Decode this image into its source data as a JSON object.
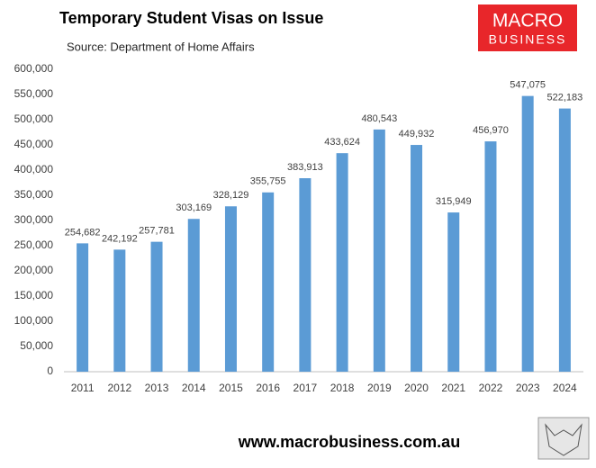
{
  "chart_data": {
    "type": "bar",
    "title": "Temporary Student Visas on Issue",
    "subtitle": "Source: Department of Home Affairs",
    "logo": [
      "MACRO",
      "BUSINESS"
    ],
    "footer": "www.macrobusiness.com.au",
    "categories": [
      "2011",
      "2012",
      "2013",
      "2014",
      "2015",
      "2016",
      "2017",
      "2018",
      "2019",
      "2020",
      "2021",
      "2022",
      "2023",
      "2024"
    ],
    "values": [
      254682,
      242192,
      257781,
      303169,
      328129,
      355755,
      383913,
      433624,
      480543,
      449932,
      315949,
      456970,
      547075,
      522183
    ],
    "value_labels": [
      "254,682",
      "242,192",
      "257,781",
      "303,169",
      "328,129",
      "355,755",
      "383,913",
      "433,624",
      "480,543",
      "449,932",
      "315,949",
      "456,970",
      "547,075",
      "522,183"
    ],
    "color": "#5b9bd5",
    "ylim": [
      0,
      600000
    ],
    "yticks": [
      0,
      {
        "value": 50000,
        "label": "50,000"
      },
      {
        "value": 100000,
        "label": "100,000"
      },
      {
        "value": 150000,
        "label": "150,000"
      },
      {
        "value": 200000,
        "label": "200,000"
      },
      {
        "value": 250000,
        "label": "250,000"
      },
      {
        "value": 300000,
        "label": "300,000"
      },
      {
        "value": 350000,
        "label": "350,000"
      },
      {
        "value": 400000,
        "label": "400,000"
      },
      {
        "value": 450000,
        "label": "450,000"
      },
      {
        "value": 500000,
        "label": "500,000"
      },
      {
        "value": 550000,
        "label": "550,000"
      },
      {
        "value": 600000,
        "label": "600,000"
      }
    ],
    "grid": false
  }
}
